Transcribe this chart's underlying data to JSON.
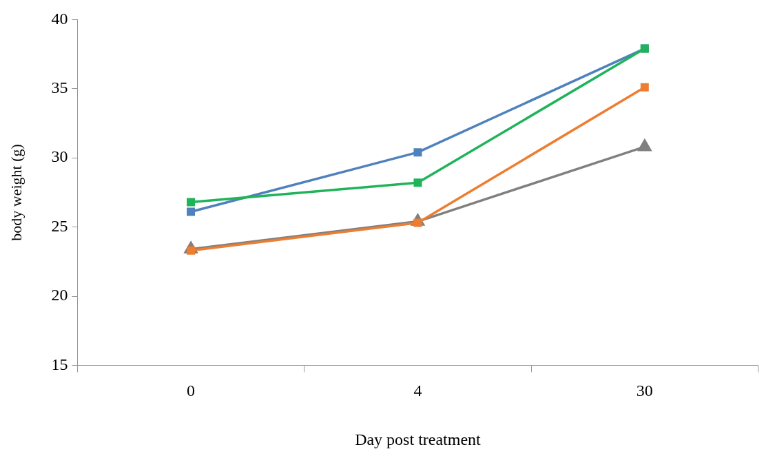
{
  "chart_data": {
    "type": "line",
    "xlabel": "Day post treatment",
    "ylabel": "body weight (g)",
    "categories": [
      "0",
      "4",
      "30"
    ],
    "ylim": [
      15,
      40
    ],
    "yticks": [
      15,
      20,
      25,
      30,
      35,
      40
    ],
    "grid": false,
    "legend": false,
    "series": [
      {
        "color": "#ed7d31",
        "marker": "square",
        "values": [
          23.3,
          25.3,
          35.1
        ]
      },
      {
        "color": "#1fb35a",
        "marker": "square",
        "values": [
          26.8,
          28.2,
          37.9
        ]
      },
      {
        "color": "#4f81bd",
        "marker": "square",
        "values": [
          26.1,
          30.4,
          37.9
        ]
      },
      {
        "color": "#808080",
        "marker": "triangle",
        "values": [
          23.4,
          25.4,
          30.8
        ]
      }
    ]
  }
}
